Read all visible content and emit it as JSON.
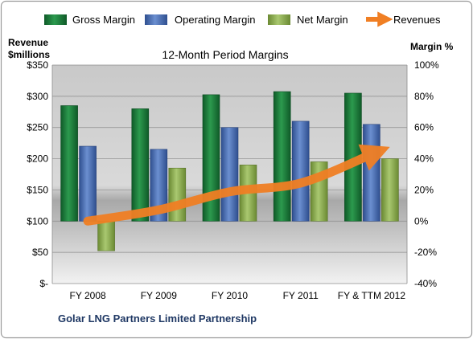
{
  "chart_data": {
    "type": "bar",
    "title": "12-Month Period Margins",
    "footer": "Golar LNG Partners Limited Partnership",
    "left_axis_label": "Revenue $millions",
    "left_axis_label_lines": [
      "Revenue",
      "$millions"
    ],
    "right_axis_label": "Margin %",
    "categories": [
      "FY 2008",
      "FY 2009",
      "FY 2010",
      "FY 2011",
      "FY & TTM 2012"
    ],
    "left_ticks": [
      "$-",
      "$50",
      "$100",
      "$150",
      "$200",
      "$250",
      "$300",
      "$350"
    ],
    "right_ticks": [
      "-40%",
      "-20%",
      "0%",
      "20%",
      "40%",
      "60%",
      "80%",
      "100%"
    ],
    "left_ylim": [
      0,
      350
    ],
    "right_ylim": [
      -40,
      100
    ],
    "legend_position": "top",
    "grid": true,
    "series": [
      {
        "name": "Gross Margin",
        "kind": "bar",
        "axis": "right",
        "color": "#1e7a3a",
        "values": [
          74,
          72,
          81,
          83,
          82
        ]
      },
      {
        "name": "Operating Margin",
        "kind": "bar",
        "axis": "right",
        "color": "#4a6fb5",
        "values": [
          48,
          46,
          60,
          64,
          62
        ]
      },
      {
        "name": "Net Margin",
        "kind": "bar",
        "axis": "right",
        "color": "#8fb04e",
        "values": [
          -19,
          34,
          36,
          38,
          40
        ]
      },
      {
        "name": "Revenues",
        "kind": "line",
        "axis": "left",
        "color": "#f07f24",
        "values": [
          100,
          118,
          147,
          161,
          207
        ]
      }
    ]
  }
}
